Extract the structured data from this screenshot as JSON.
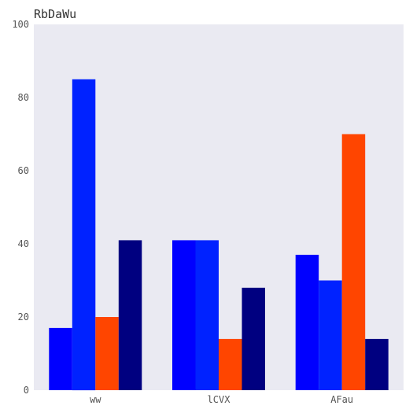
{
  "chart_data": {
    "type": "bar",
    "title": "RbDaWu",
    "xlabel": "",
    "ylabel": "",
    "categories": [
      "ww",
      "lCVX",
      "AFau"
    ],
    "ylim": [
      0,
      100
    ],
    "yticks": [
      0,
      20,
      40,
      60,
      80,
      100
    ],
    "grid": false,
    "series": [
      {
        "values": [
          17,
          41,
          37
        ],
        "color": "#0000FF"
      },
      {
        "values": [
          85,
          41,
          30
        ],
        "color": "#0022FF"
      },
      {
        "values": [
          20,
          14,
          70
        ],
        "color": "#FF4500"
      },
      {
        "values": [
          41,
          28,
          14
        ],
        "color": "#000080"
      }
    ]
  }
}
